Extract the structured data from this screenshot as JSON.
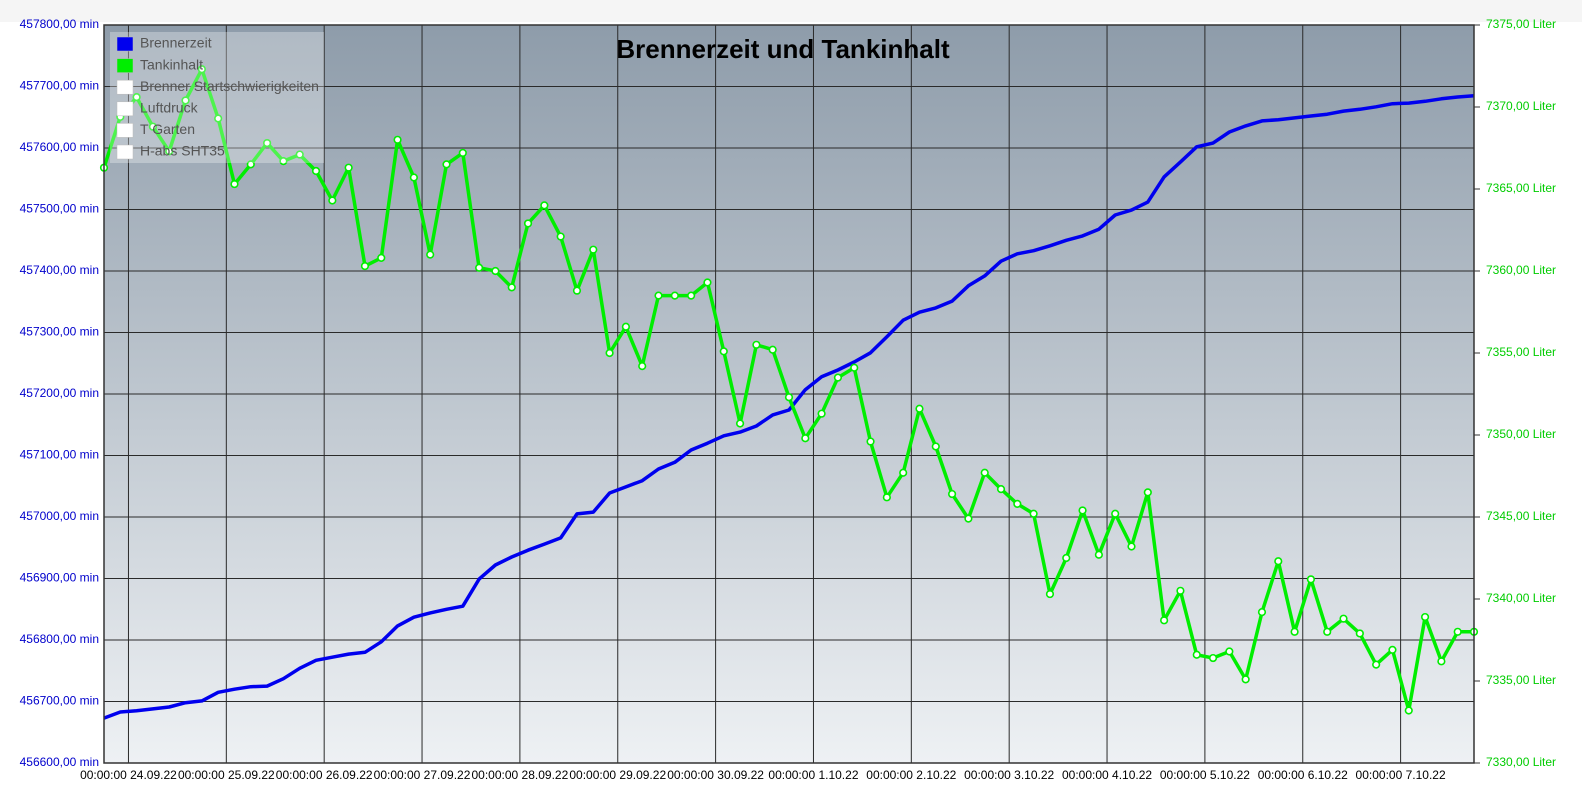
{
  "chart_data": {
    "type": "line",
    "title": "Brennerzeit und Tankinhalt",
    "x": [
      "2022-09-23T18:00",
      "2022-09-23T22:00",
      "2022-09-24T02:00",
      "2022-09-24T06:00",
      "2022-09-24T10:00",
      "2022-09-24T14:00",
      "2022-09-24T18:00",
      "2022-09-24T22:00",
      "2022-09-25T02:00",
      "2022-09-25T06:00",
      "2022-09-25T10:00",
      "2022-09-25T14:00",
      "2022-09-25T18:00",
      "2022-09-25T22:00",
      "2022-09-26T02:00",
      "2022-09-26T06:00",
      "2022-09-26T10:00",
      "2022-09-26T14:00",
      "2022-09-26T18:00",
      "2022-09-26T22:00",
      "2022-09-27T02:00",
      "2022-09-27T06:00",
      "2022-09-27T10:00",
      "2022-09-27T14:00",
      "2022-09-27T18:00",
      "2022-09-27T22:00",
      "2022-09-28T02:00",
      "2022-09-28T06:00",
      "2022-09-28T10:00",
      "2022-09-28T14:00",
      "2022-09-28T18:00",
      "2022-09-28T22:00",
      "2022-09-29T02:00",
      "2022-09-29T06:00",
      "2022-09-29T10:00",
      "2022-09-29T14:00",
      "2022-09-29T18:00",
      "2022-09-29T22:00",
      "2022-09-30T02:00",
      "2022-09-30T06:00",
      "2022-09-30T10:00",
      "2022-09-30T14:00",
      "2022-09-30T18:00",
      "2022-09-30T22:00",
      "2022-10-01T02:00",
      "2022-10-01T06:00",
      "2022-10-01T10:00",
      "2022-10-01T14:00",
      "2022-10-01T18:00",
      "2022-10-01T22:00",
      "2022-10-02T02:00",
      "2022-10-02T06:00",
      "2022-10-02T10:00",
      "2022-10-02T14:00",
      "2022-10-02T18:00",
      "2022-10-02T22:00",
      "2022-10-03T02:00",
      "2022-10-03T06:00",
      "2022-10-03T10:00",
      "2022-10-03T14:00",
      "2022-10-03T18:00",
      "2022-10-03T22:00",
      "2022-10-04T02:00",
      "2022-10-04T06:00",
      "2022-10-04T10:00",
      "2022-10-04T14:00",
      "2022-10-04T18:00",
      "2022-10-04T22:00",
      "2022-10-05T02:00",
      "2022-10-05T06:00",
      "2022-10-05T10:00",
      "2022-10-05T14:00",
      "2022-10-05T18:00",
      "2022-10-05T22:00",
      "2022-10-06T02:00",
      "2022-10-06T06:00",
      "2022-10-06T10:00",
      "2022-10-06T14:00",
      "2022-10-06T18:00",
      "2022-10-06T22:00",
      "2022-10-07T02:00",
      "2022-10-07T06:00",
      "2022-10-07T10:00",
      "2022-10-07T14:00",
      "2022-10-07T18:00"
    ],
    "series": [
      {
        "name": "Brennerzeit",
        "color": "#0000ee",
        "values": [
          456673,
          456683,
          456685,
          456688,
          456691,
          456698,
          456701,
          456715,
          456720,
          456724,
          456725,
          456737,
          456754,
          456767,
          456772,
          456777,
          456780,
          456797,
          456823,
          456837,
          456844,
          456850,
          456855,
          456899,
          456922,
          456935,
          456946,
          456956,
          456966,
          457005,
          457008,
          457039,
          457049,
          457059,
          457078,
          457089,
          457109,
          457120,
          457132,
          457138,
          457148,
          457166,
          457174,
          457207,
          457228,
          457239,
          457252,
          457267,
          457293,
          457320,
          457333,
          457340,
          457351,
          457376,
          457392,
          457416,
          457428,
          457433,
          457441,
          457450,
          457457,
          457468,
          457491,
          457499,
          457512,
          457553,
          457577,
          457602,
          457608,
          457626,
          457636,
          457644,
          457646,
          457649,
          457652,
          457655,
          457660,
          457663,
          457667,
          457672,
          457673,
          457676,
          457680,
          457683,
          457685
        ]
      },
      {
        "name": "Tankinhalt",
        "color": "#00ee00",
        "axis": "y2",
        "markers": true,
        "values": [
          7366.3,
          7369.4,
          7370.6,
          7368.8,
          7367.3,
          7370.4,
          7372.3,
          7369.3,
          7365.3,
          7366.5,
          7367.8,
          7366.7,
          7367.1,
          7366.1,
          7364.3,
          7366.3,
          7360.3,
          7360.8,
          7368.0,
          7365.7,
          7361.0,
          7366.5,
          7367.2,
          7360.2,
          7360.0,
          7359.0,
          7362.9,
          7364.0,
          7362.1,
          7358.8,
          7361.3,
          7355.0,
          7356.6,
          7354.2,
          7358.5,
          7358.5,
          7358.5,
          7359.3,
          7355.1,
          7350.7,
          7355.5,
          7355.2,
          7352.3,
          7349.8,
          7351.3,
          7353.5,
          7354.1,
          7349.6,
          7346.2,
          7347.7,
          7351.6,
          7349.3,
          7346.4,
          7344.9,
          7347.7,
          7346.7,
          7345.8,
          7345.2,
          7340.3,
          7342.5,
          7345.4,
          7342.7,
          7345.2,
          7343.2,
          7346.5,
          7338.7,
          7340.5,
          7336.6,
          7336.4,
          7336.8,
          7335.1,
          7339.2,
          7342.3,
          7338.0,
          7341.2,
          7338.0,
          7338.8,
          7337.9,
          7336.0,
          7336.9,
          7333.2,
          7338.9,
          7336.2,
          7338.0,
          7338.0
        ]
      }
    ],
    "hidden_series": [
      {
        "name": "Brenner Startschwierigkeiten",
        "color": "#ffffff"
      },
      {
        "name": "Luftdruck",
        "color": "#ffffff"
      },
      {
        "name": "T Garten",
        "color": "#ffffff"
      },
      {
        "name": "H-abs SHT35",
        "color": "#ffffff"
      }
    ],
    "xlim": [
      "2022-09-23T18:00",
      "2022-10-07T18:00"
    ],
    "xticks": [
      {
        "value": "2022-09-24T00:00",
        "label": "00:00:00 24.09.22"
      },
      {
        "value": "2022-09-25T00:00",
        "label": "00:00:00 25.09.22"
      },
      {
        "value": "2022-09-26T00:00",
        "label": "00:00:00 26.09.22"
      },
      {
        "value": "2022-09-27T00:00",
        "label": "00:00:00 27.09.22"
      },
      {
        "value": "2022-09-28T00:00",
        "label": "00:00:00 28.09.22"
      },
      {
        "value": "2022-09-29T00:00",
        "label": "00:00:00 29.09.22"
      },
      {
        "value": "2022-09-30T00:00",
        "label": "00:00:00 30.09.22"
      },
      {
        "value": "2022-10-01T00:00",
        "label": "00:00:00 1.10.22"
      },
      {
        "value": "2022-10-02T00:00",
        "label": "00:00:00 2.10.22"
      },
      {
        "value": "2022-10-03T00:00",
        "label": "00:00:00 3.10.22"
      },
      {
        "value": "2022-10-04T00:00",
        "label": "00:00:00 4.10.22"
      },
      {
        "value": "2022-10-05T00:00",
        "label": "00:00:00 5.10.22"
      },
      {
        "value": "2022-10-06T00:00",
        "label": "00:00:00 6.10.22"
      },
      {
        "value": "2022-10-07T00:00",
        "label": "00:00:00 7.10.22"
      }
    ],
    "ylim": [
      456600,
      457800
    ],
    "yticks": [
      {
        "value": 456600,
        "label": "456600,00 min"
      },
      {
        "value": 456700,
        "label": "456700,00 min"
      },
      {
        "value": 456800,
        "label": "456800,00 min"
      },
      {
        "value": 456900,
        "label": "456900,00 min"
      },
      {
        "value": 457000,
        "label": "457000,00 min"
      },
      {
        "value": 457100,
        "label": "457100,00 min"
      },
      {
        "value": 457200,
        "label": "457200,00 min"
      },
      {
        "value": 457300,
        "label": "457300,00 min"
      },
      {
        "value": 457400,
        "label": "457400,00 min"
      },
      {
        "value": 457500,
        "label": "457500,00 min"
      },
      {
        "value": 457600,
        "label": "457600,00 min"
      },
      {
        "value": 457700,
        "label": "457700,00 min"
      },
      {
        "value": 457800,
        "label": "457800,00 min"
      }
    ],
    "y2lim": [
      7330,
      7375
    ],
    "y2ticks": [
      {
        "value": 7330,
        "label": "7330,00 Liter"
      },
      {
        "value": 7335,
        "label": "7335,00 Liter"
      },
      {
        "value": 7340,
        "label": "7340,00 Liter"
      },
      {
        "value": 7345,
        "label": "7345,00 Liter"
      },
      {
        "value": 7350,
        "label": "7350,00 Liter"
      },
      {
        "value": 7355,
        "label": "7355,00 Liter"
      },
      {
        "value": 7360,
        "label": "7360,00 Liter"
      },
      {
        "value": 7365,
        "label": "7365,00 Liter"
      },
      {
        "value": 7370,
        "label": "7370,00 Liter"
      },
      {
        "value": 7375,
        "label": "7375,00 Liter"
      }
    ],
    "ytick_color": "#0000cc",
    "y2tick_color": "#00cc00",
    "grid": true,
    "legend": "top-left"
  }
}
